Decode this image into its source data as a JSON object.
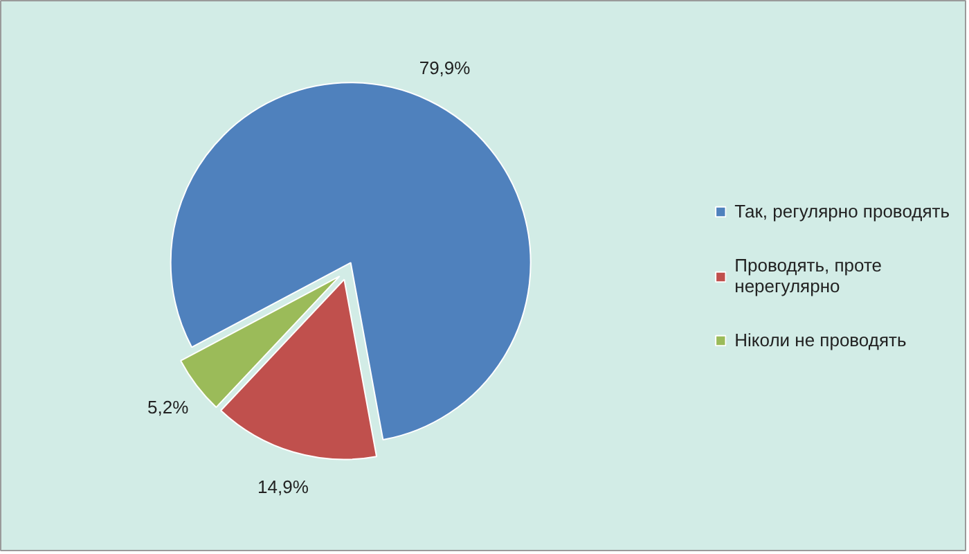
{
  "chart_data": {
    "type": "pie",
    "categories": [
      "Так, регулярно проводять",
      "Проводять, проте нерегулярно",
      "Ніколи не проводять"
    ],
    "values": [
      79.9,
      14.9,
      5.2
    ],
    "colors": [
      "#4f81bd",
      "#c0504d",
      "#9bbb59"
    ],
    "value_labels": [
      "79,9%",
      "14,9%",
      "5,2%"
    ],
    "legend": "right"
  }
}
